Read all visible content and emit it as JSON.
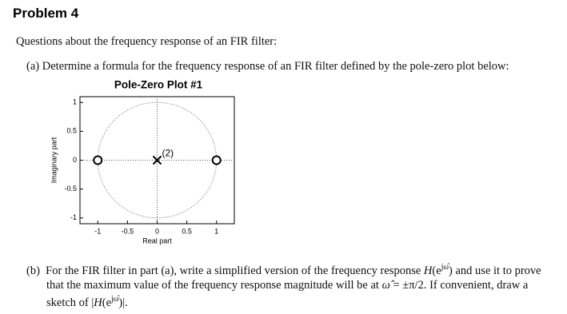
{
  "header": {
    "title": "Problem 4"
  },
  "intro": "Questions about the frequency response of an FIR filter:",
  "part_a": {
    "label": "(a)",
    "text": "Determine a formula for the frequency response of an FIR filter defined by the pole-zero plot below:"
  },
  "chart_data": {
    "type": "pole-zero",
    "title": "Pole-Zero Plot #1",
    "xlabel": "Real part",
    "ylabel": "Imaginary part",
    "xlim": [
      -1.3,
      1.3
    ],
    "ylim": [
      -1.1,
      1.1
    ],
    "xticks": [
      -1,
      -0.5,
      0,
      0.5,
      1
    ],
    "yticks": [
      -1,
      -0.5,
      0,
      0.5,
      1
    ],
    "zeros": {
      "x": [
        -1,
        1
      ],
      "y": [
        0,
        0
      ]
    },
    "poles": {
      "x": [
        0
      ],
      "y": [
        0
      ],
      "labels": [
        "(2)"
      ]
    },
    "color": "#000000"
  },
  "part_b": {
    "label": "(b)",
    "segments": [
      "For the FIR filter in part (a), write a simplified version of the frequency response ",
      "H",
      "(e",
      "jω̂",
      ")",
      " and use it to prove that the maximum value of the frequency response magnitude will be at ",
      "ω̂",
      " = ±π/2. If convenient, draw a sketch of |",
      "H",
      "(e",
      "jω̂",
      ")|."
    ]
  }
}
